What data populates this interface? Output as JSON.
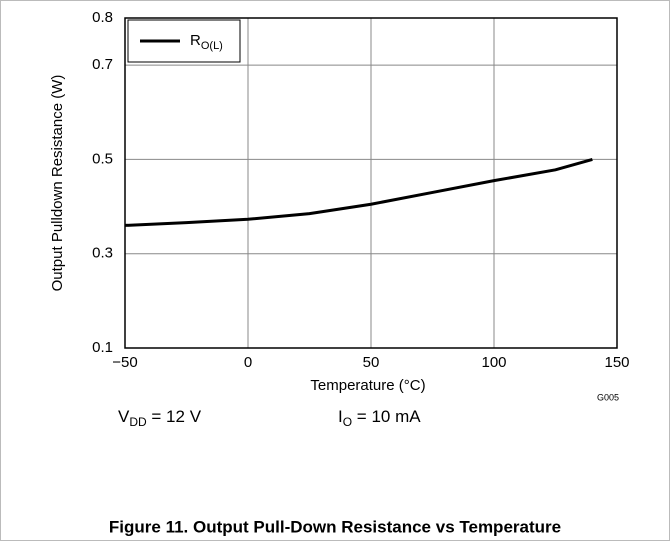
{
  "chart_data": {
    "type": "line",
    "xlabel": "Temperature (°C)",
    "ylabel": "Output Pulldown Resistance (W)",
    "x": [
      -50,
      -25,
      0,
      25,
      50,
      75,
      100,
      125,
      140
    ],
    "series": [
      {
        "name": "R",
        "name_sub": "O(L)",
        "color": "#000000",
        "values": [
          0.36,
          0.366,
          0.373,
          0.385,
          0.405,
          0.43,
          0.455,
          0.478,
          0.5
        ]
      }
    ],
    "xlim": [
      -50,
      150
    ],
    "xticks": [
      {
        "value": -50,
        "label": "−50"
      },
      0,
      50,
      100,
      150
    ],
    "ylim": [
      0.1,
      0.8
    ],
    "yticks": [
      0.8,
      0.7,
      0.5,
      0.3,
      0.1
    ],
    "grid": true,
    "legend": "upper left",
    "code": "G005",
    "annotations": [
      {
        "text": "V",
        "sub": "DD",
        "rest": " = 12 V"
      },
      {
        "text": "I",
        "sub": "O",
        "rest": " = 10 mA"
      }
    ],
    "caption": "Figure 11. Output Pull-Down Resistance vs Temperature"
  }
}
